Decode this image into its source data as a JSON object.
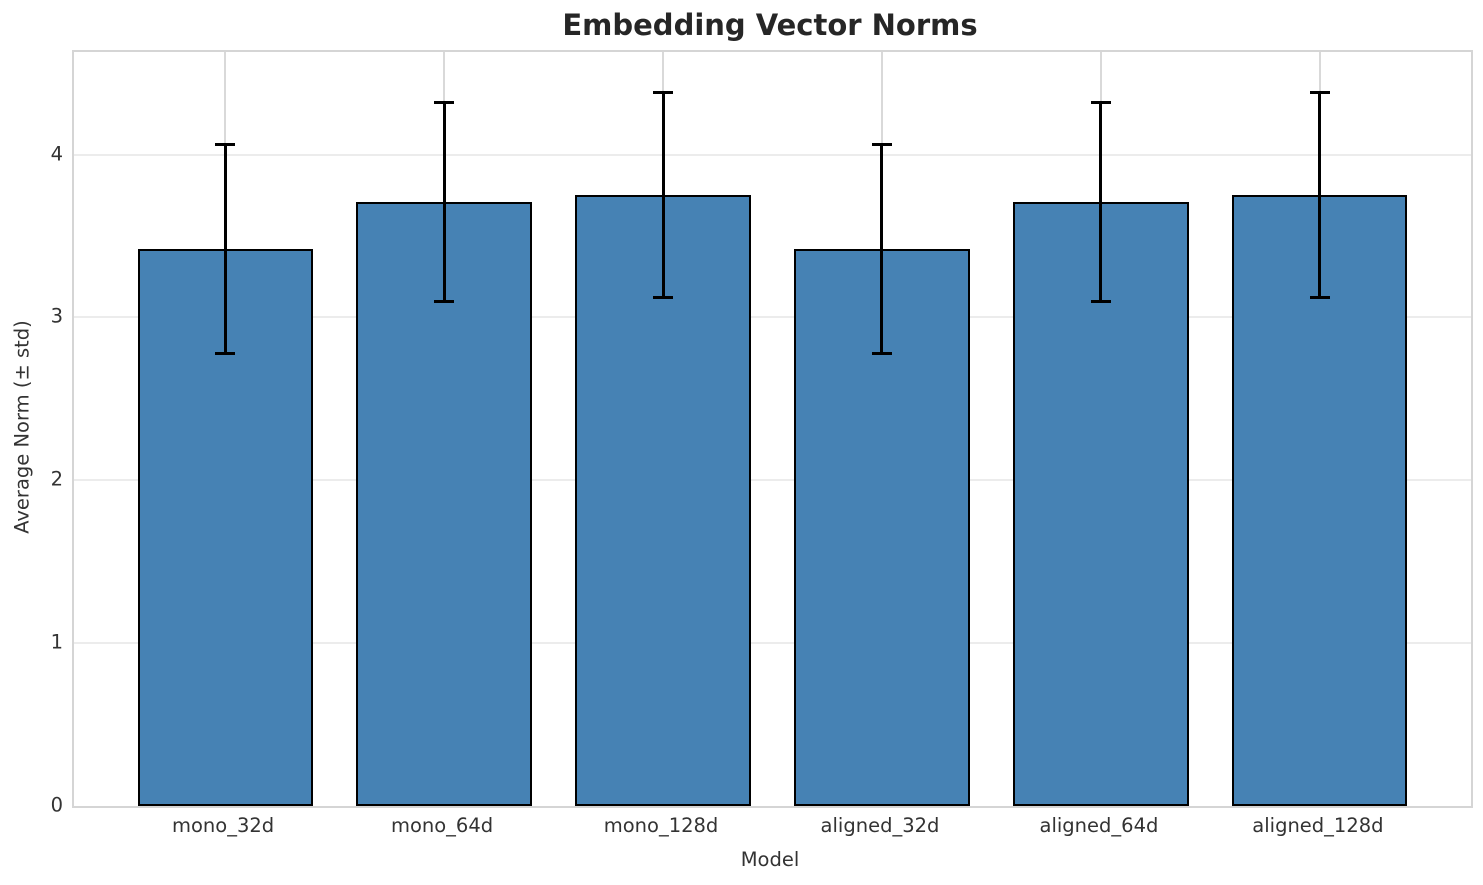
{
  "chart_data": {
    "type": "bar",
    "title": "Embedding Vector Norms",
    "xlabel": "Model",
    "ylabel": "Average Norm (± std)",
    "categories": [
      "mono_32d",
      "mono_64d",
      "mono_128d",
      "aligned_32d",
      "aligned_64d",
      "aligned_128d"
    ],
    "series": [
      {
        "name": "Average Norm",
        "values": [
          3.42,
          3.71,
          3.75,
          3.42,
          3.71,
          3.75
        ],
        "errors": [
          0.64,
          0.61,
          0.63,
          0.64,
          0.61,
          0.63
        ]
      }
    ],
    "y_ticks": [
      "0",
      "1",
      "2",
      "3",
      "4"
    ],
    "ylim": [
      0,
      4.63
    ],
    "grid": true,
    "legend_position": "none",
    "colors": {
      "bar_fill": "#4682b4",
      "bar_edge": "#000000",
      "error_bar": "#000000",
      "grid_horizontal": "#ececec",
      "grid_vertical": "#d9d9d9",
      "spine": "#d5d5d5",
      "title_text": "#262626",
      "tick_text": "#333333"
    }
  }
}
